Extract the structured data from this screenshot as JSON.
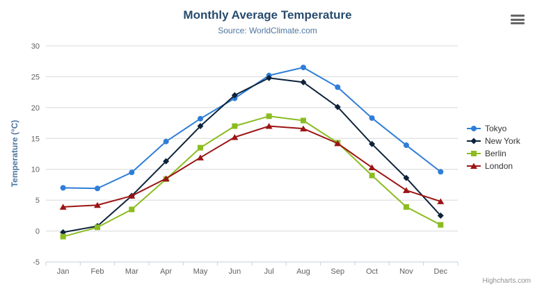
{
  "chart_data": {
    "type": "line",
    "title": "Monthly Average Temperature",
    "subtitle": "Source: WorldClimate.com",
    "categories": [
      "Jan",
      "Feb",
      "Mar",
      "Apr",
      "May",
      "Jun",
      "Jul",
      "Aug",
      "Sep",
      "Oct",
      "Nov",
      "Dec"
    ],
    "xlabel": "",
    "ylabel": "Temperature (°C)",
    "ylim": [
      -5,
      30
    ],
    "yticks": [
      -5,
      0,
      5,
      10,
      15,
      20,
      25,
      30
    ],
    "grid": true,
    "legend_position": "right",
    "series": [
      {
        "name": "Tokyo",
        "color": "#2f7ed8",
        "marker": "circle",
        "values": [
          7.0,
          6.9,
          9.5,
          14.5,
          18.2,
          21.5,
          25.2,
          26.5,
          23.3,
          18.3,
          13.9,
          9.6
        ]
      },
      {
        "name": "New York",
        "color": "#0d233a",
        "marker": "diamond",
        "values": [
          -0.2,
          0.8,
          5.7,
          11.3,
          17.0,
          22.0,
          24.8,
          24.1,
          20.1,
          14.1,
          8.6,
          2.5
        ]
      },
      {
        "name": "Berlin",
        "color": "#8bbc21",
        "marker": "square",
        "values": [
          -0.9,
          0.6,
          3.5,
          8.4,
          13.5,
          17.0,
          18.6,
          17.9,
          14.3,
          9.0,
          3.9,
          1.0
        ]
      },
      {
        "name": "London",
        "color": "#9c1414",
        "marker": "triangle",
        "values": [
          3.9,
          4.2,
          5.7,
          8.5,
          11.9,
          15.2,
          17.0,
          16.6,
          14.2,
          10.3,
          6.6,
          4.8
        ]
      }
    ]
  },
  "icons": {
    "menu": "hamburger-menu-icon"
  },
  "credits": "Highcharts.com",
  "colors": {
    "title": "#274b6d",
    "subtitle": "#4d759e",
    "axis_label": "#606060",
    "axis_title": "#4d759e",
    "gridline": "#d8d8d8",
    "axis_line": "#c0d0e0",
    "legend_text": "#333333",
    "credits": "#909090"
  }
}
